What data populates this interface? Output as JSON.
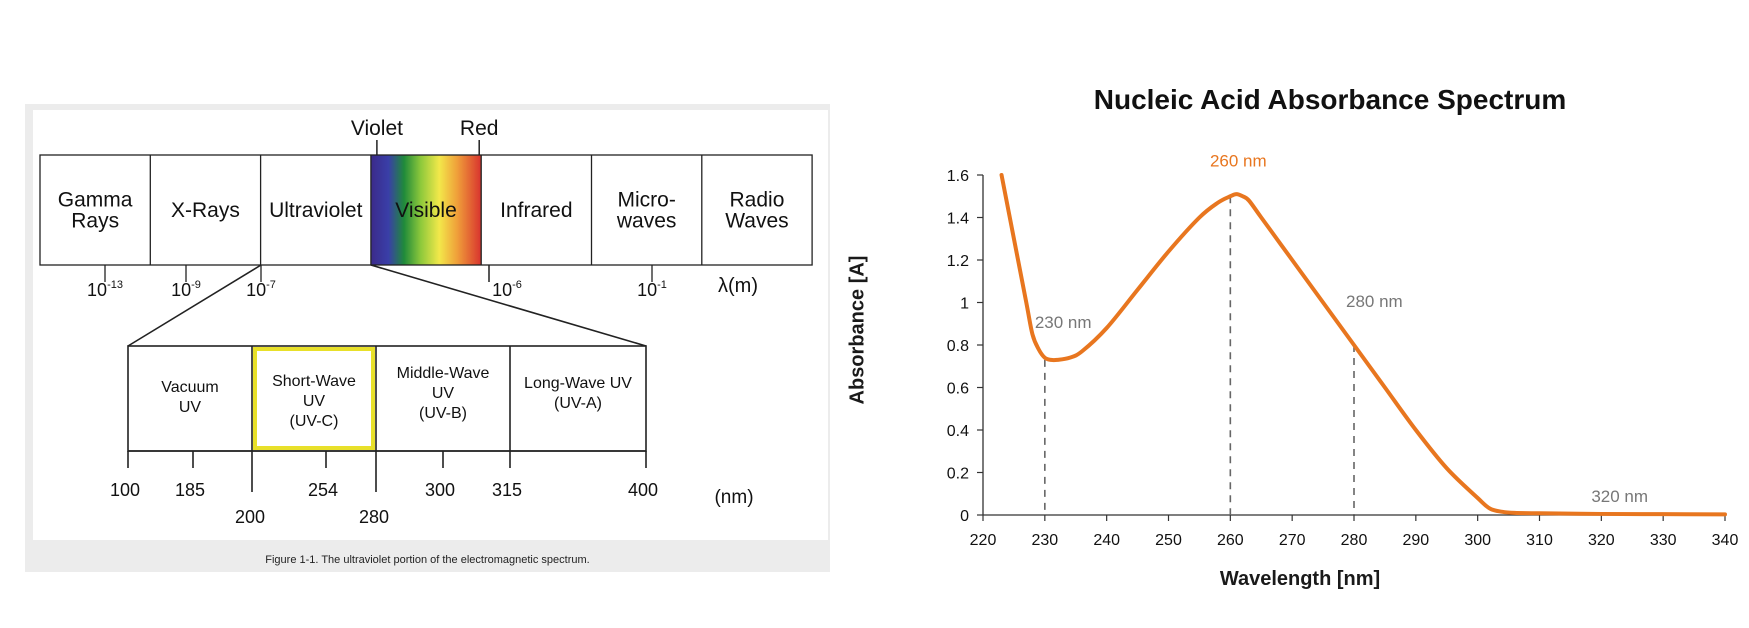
{
  "spectrum": {
    "bands": [
      "Gamma Rays",
      "X-Rays",
      "Ultraviolet",
      "Visible",
      "Infrared",
      "Micro-waves",
      "Radio Waves"
    ],
    "band_lines": [
      [
        "Gamma",
        "Rays"
      ],
      [
        "X-Rays"
      ],
      [
        "Ultraviolet"
      ],
      [
        "Visible"
      ],
      [
        "Infrared"
      ],
      [
        "Micro-",
        "waves"
      ],
      [
        "Radio",
        "Waves"
      ]
    ],
    "violet_label": "Violet",
    "red_label": "Red",
    "wavelength_ticks": [
      {
        "base": "10",
        "exp": "-13"
      },
      {
        "base": "10",
        "exp": "-9"
      },
      {
        "base": "10",
        "exp": "-7"
      },
      {
        "base": "10",
        "exp": "-6"
      },
      {
        "base": "10",
        "exp": "-1"
      }
    ],
    "unit_m": "λ(m)",
    "uv_bands": [
      {
        "lines": [
          "Vacuum",
          "UV"
        ],
        "highlighted": false
      },
      {
        "lines": [
          "Short-Wave",
          "UV",
          "(UV-C)"
        ],
        "highlighted": true
      },
      {
        "lines": [
          "Middle-Wave",
          "UV",
          "(UV-B)"
        ],
        "highlighted": false
      },
      {
        "lines": [
          "Long-Wave UV",
          "(UV-A)"
        ],
        "highlighted": false
      }
    ],
    "uv_ticks_top": [
      "100",
      "185",
      "254",
      "300",
      "315",
      "400"
    ],
    "uv_ticks_bottom": [
      "200",
      "280"
    ],
    "unit_nm": "(nm)",
    "highlight_color": "#e8e02a",
    "caption": "Figure 1-1. The ultraviolet portion of the electromagnetic spectrum."
  },
  "chart_data": {
    "type": "line",
    "title": "Nucleic Acid Absorbance Spectrum",
    "xlabel": "Wavelength [nm]",
    "ylabel": "Absorbance [A]",
    "xlim": [
      220,
      340
    ],
    "ylim": [
      0,
      1.6
    ],
    "xticks": [
      220,
      230,
      240,
      250,
      260,
      270,
      280,
      290,
      300,
      310,
      320,
      330,
      340
    ],
    "yticks": [
      0,
      0.2,
      0.4,
      0.6,
      0.8,
      1,
      1.2,
      1.4,
      1.6
    ],
    "ytick_labels": [
      "0",
      "0.2",
      "0.4",
      "0.6",
      "0.8",
      "1",
      "1.2",
      "1.4",
      "1.6"
    ],
    "grid": false,
    "line_color": "#e8761f",
    "series": [
      {
        "x": [
          223,
          225,
          227,
          228,
          229,
          230,
          231,
          232,
          234,
          236,
          240,
          245,
          250,
          255,
          258,
          260,
          261,
          262,
          263,
          265,
          270,
          275,
          280,
          285,
          290,
          295,
          300,
          302,
          304,
          306,
          310,
          320,
          330,
          340
        ],
        "y": [
          1.6,
          1.3,
          1.0,
          0.85,
          0.78,
          0.74,
          0.73,
          0.73,
          0.74,
          0.77,
          0.88,
          1.06,
          1.24,
          1.4,
          1.47,
          1.5,
          1.51,
          1.5,
          1.48,
          1.4,
          1.2,
          1.0,
          0.8,
          0.6,
          0.4,
          0.22,
          0.08,
          0.03,
          0.015,
          0.01,
          0.008,
          0.005,
          0.004,
          0.003
        ]
      }
    ],
    "annotations": [
      {
        "x": 230,
        "y": 0.73,
        "label": "230 nm",
        "color": "#777777",
        "dashed": true
      },
      {
        "x": 260,
        "y": 1.5,
        "label": "260 nm",
        "color": "#e8761f",
        "dashed": true
      },
      {
        "x": 280,
        "y": 0.8,
        "label": "280 nm",
        "color": "#777777",
        "dashed": true
      },
      {
        "x": 320,
        "y": 0.005,
        "label": "320 nm",
        "color": "#777777",
        "dashed": false
      }
    ]
  }
}
